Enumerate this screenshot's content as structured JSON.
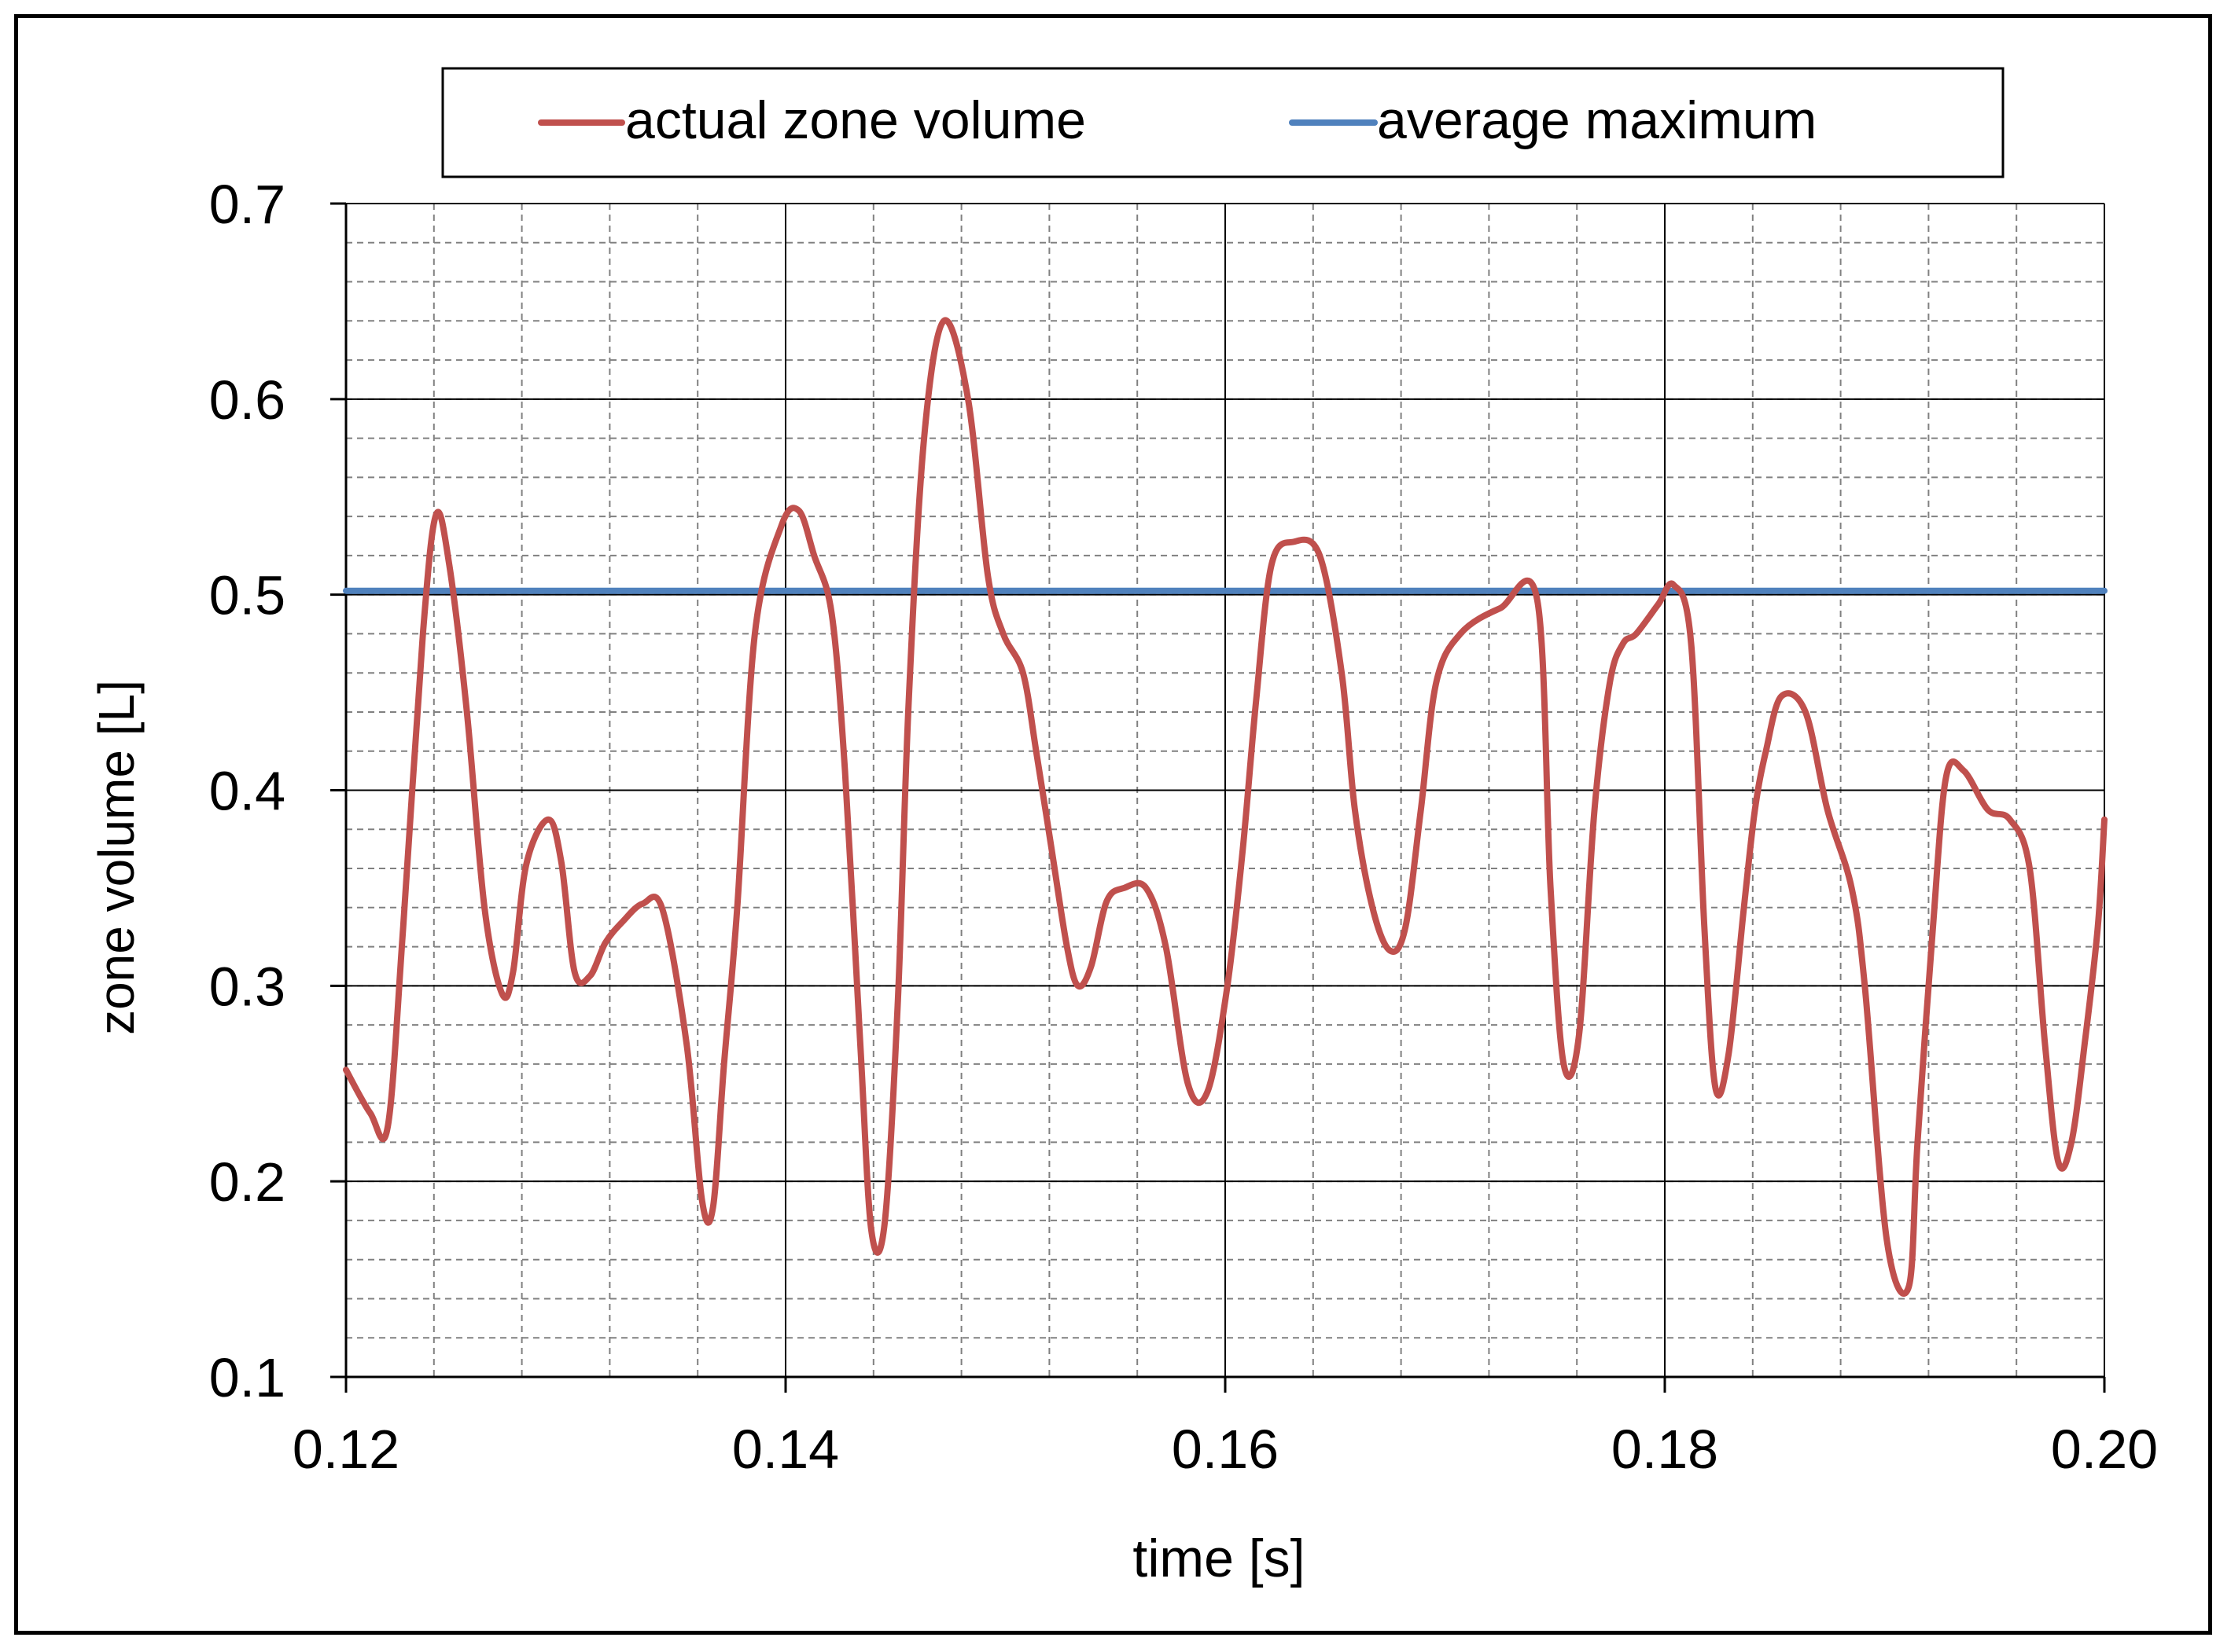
{
  "chart_data": {
    "type": "line",
    "xlabel": "time [s]",
    "ylabel": "zone volume [L]",
    "xlim": [
      0.12,
      0.2
    ],
    "ylim": [
      0.1,
      0.7
    ],
    "x_ticks": [
      0.12,
      0.14,
      0.16,
      0.18,
      0.2
    ],
    "x_tick_labels": [
      "0.12",
      "0.14",
      "0.16",
      "0.18",
      "0.20"
    ],
    "y_ticks": [
      0.1,
      0.2,
      0.3,
      0.4,
      0.5,
      0.6,
      0.7
    ],
    "y_tick_labels": [
      "0.1",
      "0.2",
      "0.3",
      "0.4",
      "0.5",
      "0.6",
      "0.7"
    ],
    "minor_x_step": 0.004,
    "minor_y_step": 0.02,
    "grid": true,
    "legend_position": "top",
    "series": [
      {
        "name": "actual zone volume",
        "color": "#C0504D",
        "x": [
          0.12,
          0.1211,
          0.1219,
          0.1226,
          0.1235,
          0.1241,
          0.1247,
          0.1255,
          0.1263,
          0.1271,
          0.1276,
          0.1282,
          0.1292,
          0.1298,
          0.1304,
          0.1311,
          0.1318,
          0.1326,
          0.1335,
          0.1344,
          0.1355,
          0.1362,
          0.1367,
          0.1372,
          0.1378,
          0.1386,
          0.1398,
          0.1406,
          0.1413,
          0.1421,
          0.1427,
          0.1434,
          0.1439,
          0.1445,
          0.1451,
          0.1456,
          0.1463,
          0.1472,
          0.1483,
          0.1492,
          0.1499,
          0.1508,
          0.1514,
          0.1521,
          0.1528,
          0.1533,
          0.1539,
          0.1546,
          0.1554,
          0.1564,
          0.1573,
          0.1583,
          0.1592,
          0.1601,
          0.1608,
          0.1614,
          0.1621,
          0.1631,
          0.1643,
          0.1653,
          0.1659,
          0.1667,
          0.1675,
          0.1682,
          0.1689,
          0.1696,
          0.1707,
          0.1725,
          0.1742,
          0.1748,
          0.1754,
          0.1761,
          0.1768,
          0.1775,
          0.1781,
          0.1787,
          0.1797,
          0.1804,
          0.1812,
          0.1818,
          0.1823,
          0.1829,
          0.1836,
          0.1841,
          0.1846,
          0.1853,
          0.1864,
          0.1874,
          0.1885,
          0.1891,
          0.1901,
          0.1911,
          0.1915,
          0.1922,
          0.1928,
          0.1936,
          0.1947,
          0.1957,
          0.1966,
          0.1973,
          0.1979,
          0.1985,
          0.1991,
          0.1997,
          0.2
        ],
        "y": [
          0.257,
          0.235,
          0.228,
          0.33,
          0.48,
          0.541,
          0.515,
          0.44,
          0.34,
          0.296,
          0.307,
          0.362,
          0.385,
          0.363,
          0.307,
          0.305,
          0.322,
          0.333,
          0.342,
          0.339,
          0.27,
          0.19,
          0.187,
          0.26,
          0.34,
          0.48,
          0.535,
          0.543,
          0.52,
          0.49,
          0.41,
          0.27,
          0.175,
          0.178,
          0.29,
          0.445,
          0.58,
          0.64,
          0.6,
          0.51,
          0.48,
          0.46,
          0.42,
          0.37,
          0.32,
          0.3,
          0.31,
          0.343,
          0.35,
          0.35,
          0.32,
          0.25,
          0.246,
          0.3,
          0.37,
          0.445,
          0.515,
          0.527,
          0.52,
          0.46,
          0.39,
          0.34,
          0.318,
          0.33,
          0.39,
          0.455,
          0.48,
          0.493,
          0.497,
          0.35,
          0.26,
          0.275,
          0.39,
          0.455,
          0.475,
          0.48,
          0.495,
          0.505,
          0.475,
          0.33,
          0.248,
          0.265,
          0.34,
          0.39,
          0.42,
          0.448,
          0.44,
          0.39,
          0.35,
          0.3,
          0.17,
          0.146,
          0.22,
          0.33,
          0.407,
          0.41,
          0.39,
          0.385,
          0.36,
          0.27,
          0.21,
          0.22,
          0.27,
          0.33,
          0.385
        ]
      },
      {
        "name": "average maximum",
        "color": "#4F81BD",
        "x": [
          0.12,
          0.2
        ],
        "y": [
          0.502,
          0.502
        ]
      }
    ]
  }
}
